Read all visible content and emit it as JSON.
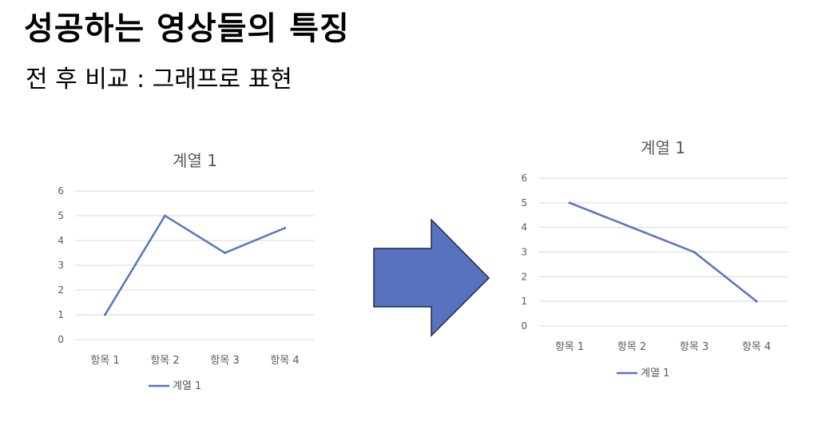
{
  "slide": {
    "title": "성공하는 영상들의 특징",
    "subtitle": "전 후 비교 : 그래프로 표현"
  },
  "colors": {
    "series": "#5773c0",
    "arrow": "#5773c0",
    "grid": "#d9d9d9",
    "text": "#595959"
  },
  "icons": {
    "arrow": "right-arrow-icon"
  },
  "chart_data": [
    {
      "type": "line",
      "title": "계열 1",
      "categories": [
        "항목 1",
        "항목 2",
        "항목 3",
        "항목 4"
      ],
      "series": [
        {
          "name": "계열 1",
          "values": [
            1,
            5,
            3.5,
            4.5
          ]
        }
      ],
      "ylim": [
        0,
        6
      ],
      "yticks": [
        "0",
        "1",
        "2",
        "3",
        "4",
        "5",
        "6"
      ],
      "grid": true,
      "legend": "bottom"
    },
    {
      "type": "line",
      "title": "계열 1",
      "categories": [
        "항목 1",
        "항목 2",
        "항목 3",
        "항목 4"
      ],
      "series": [
        {
          "name": "계열 1",
          "values": [
            5,
            4,
            3,
            1
          ]
        }
      ],
      "ylim": [
        0,
        6
      ],
      "yticks": [
        "0",
        "1",
        "2",
        "3",
        "4",
        "5",
        "6"
      ],
      "grid": true,
      "legend": "bottom"
    }
  ]
}
